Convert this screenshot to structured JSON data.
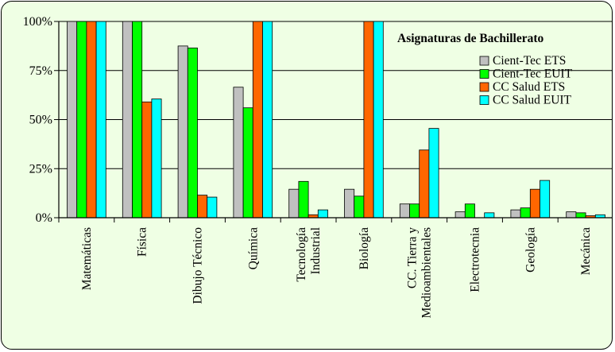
{
  "chart_data": {
    "type": "bar",
    "title": "Asignaturas de Bachillerato",
    "categories": [
      [
        "Matemáticas"
      ],
      [
        "Física"
      ],
      [
        "Dibujo Técnico"
      ],
      [
        "Química"
      ],
      [
        "Tecnología",
        "Industrial"
      ],
      [
        "Biología"
      ],
      [
        "CC. Tierra y",
        "Medioambientales"
      ],
      [
        "Electrotecnia"
      ],
      [
        "Geología"
      ],
      [
        "Mecánica"
      ]
    ],
    "series": [
      {
        "name": "Cient-Tec ETS",
        "color": "#c0c0c0",
        "values": [
          100,
          100,
          87.5,
          66.5,
          14.5,
          14.5,
          7,
          3,
          4,
          3
        ]
      },
      {
        "name": "Cient-Tec EUIT",
        "color": "#00ff00",
        "values": [
          100,
          100,
          86.5,
          56,
          18.5,
          11,
          7,
          7,
          5,
          2.5
        ]
      },
      {
        "name": "CC Salud ETS",
        "color": "#ff6600",
        "values": [
          100,
          59,
          11.5,
          100,
          1.5,
          100,
          34.5,
          0,
          14.5,
          1
        ]
      },
      {
        "name": "CC Salud EUIT",
        "color": "#00ffff",
        "values": [
          100,
          60.5,
          10.5,
          100,
          4,
          100,
          45.5,
          2.5,
          19,
          1.5
        ]
      }
    ],
    "ylim": [
      0,
      100
    ],
    "yticks": [
      "0%",
      "25%",
      "50%",
      "75%",
      "100%"
    ],
    "grid": true,
    "legend_position": "top-right"
  }
}
